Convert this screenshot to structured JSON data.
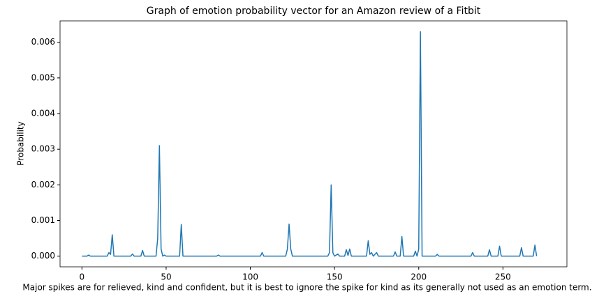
{
  "chart_data": {
    "type": "line",
    "title": "Graph of emotion probability vector for an Amazon review of a Fitbit",
    "y_label": "Probability",
    "caption": "Major spikes are for relieved, kind and confident, but it is best to ignore the spike for kind as its generally not used as an emotion term.",
    "x": [
      0,
      3,
      4,
      5,
      15,
      16,
      17,
      18,
      19,
      29,
      30,
      31,
      35,
      36,
      37,
      44,
      45,
      46,
      47,
      48,
      49,
      50,
      58,
      59,
      60,
      80,
      81,
      82,
      106,
      107,
      108,
      121,
      122,
      123,
      124,
      125,
      146,
      147,
      148,
      149,
      150,
      152,
      153,
      156,
      157,
      158,
      159,
      160,
      169,
      170,
      171,
      172,
      173,
      175,
      176,
      185,
      186,
      187,
      189,
      190,
      191,
      197,
      198,
      199,
      200,
      201,
      202,
      210,
      211,
      212,
      231,
      232,
      233,
      241,
      242,
      243,
      247,
      248,
      249,
      260,
      261,
      262,
      268,
      269,
      270
    ],
    "series": [
      {
        "name": "Probability",
        "color": "#1f77b4",
        "values": [
          0,
          0,
          3e-05,
          0,
          0,
          0.0001,
          5e-05,
          0.0006,
          0,
          0,
          6e-05,
          0,
          0,
          0.00016,
          0,
          0,
          0.0005,
          0.0031,
          0.0002,
          0,
          3e-05,
          0,
          0,
          0.00089,
          0,
          0,
          3e-05,
          0,
          0,
          0.0001,
          0,
          0,
          0.0002,
          0.0009,
          0.0002,
          0,
          0,
          0.0001,
          0.002,
          0.0001,
          0,
          6e-05,
          0,
          0,
          0.00018,
          2e-05,
          0.0002,
          0,
          0,
          0.00043,
          5e-05,
          0.0001,
          0,
          0.0001,
          0,
          0,
          0.00012,
          0,
          0,
          0.00055,
          0,
          0,
          0.00014,
          0,
          0.0002,
          0.0063,
          0,
          0,
          5e-05,
          0,
          0,
          0.0001,
          0,
          0,
          0.00018,
          0,
          0,
          0.00028,
          0,
          0,
          0.00024,
          0,
          0,
          0.00031,
          0
        ]
      }
    ],
    "xlim": [
      -13,
      288
    ],
    "ylim": [
      -0.0003,
      0.0066
    ],
    "xticks": [
      0,
      50,
      100,
      150,
      200,
      250
    ],
    "yticks": [
      {
        "value": 0,
        "label": "0.000"
      },
      {
        "value": 0.001,
        "label": "0.001"
      },
      {
        "value": 0.002,
        "label": "0.002"
      },
      {
        "value": 0.003,
        "label": "0.003"
      },
      {
        "value": 0.004,
        "label": "0.004"
      },
      {
        "value": 0.005,
        "label": "0.005"
      },
      {
        "value": 0.006,
        "label": "0.006"
      }
    ],
    "grid": false
  }
}
